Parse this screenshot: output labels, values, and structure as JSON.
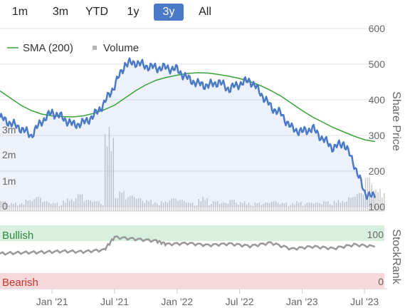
{
  "range_selector": {
    "buttons": [
      "1m",
      "3m",
      "YTD",
      "1y",
      "3y",
      "All"
    ],
    "active": "3y"
  },
  "chart_data": {
    "type": "line",
    "legend": {
      "position": "top-left",
      "items": [
        "SMA (200)",
        "Volume"
      ]
    },
    "price_axis": {
      "label": "Share Price",
      "ticks": [
        100,
        200,
        300,
        400,
        500,
        600
      ],
      "range": [
        100,
        600
      ],
      "side": "right"
    },
    "volume_axis": {
      "ticks": [
        "0",
        "1m",
        "2m",
        "3m"
      ],
      "range": [
        0,
        3000000
      ],
      "side": "left"
    },
    "x_axis": {
      "ticks": [
        "Jan '21",
        "Jul '21",
        "Jan '22",
        "Jul '22",
        "Jan '23",
        "Jul '23"
      ],
      "range": [
        "2020-08",
        "2023-08"
      ]
    },
    "series": [
      {
        "name": "Share Price",
        "color": "#4a7ac7",
        "points": [
          [
            "2020-08",
            350
          ],
          [
            "2020-09",
            335
          ],
          [
            "2020-10",
            320
          ],
          [
            "2020-11",
            300
          ],
          [
            "2020-12",
            340
          ],
          [
            "2021-01",
            365
          ],
          [
            "2021-02",
            350
          ],
          [
            "2021-03",
            330
          ],
          [
            "2021-04",
            335
          ],
          [
            "2021-05",
            355
          ],
          [
            "2021-06",
            390
          ],
          [
            "2021-07",
            440
          ],
          [
            "2021-08",
            500
          ],
          [
            "2021-09",
            505
          ],
          [
            "2021-10",
            495
          ],
          [
            "2021-11",
            490
          ],
          [
            "2021-12",
            490
          ],
          [
            "2022-01",
            485
          ],
          [
            "2022-02",
            460
          ],
          [
            "2022-03",
            445
          ],
          [
            "2022-04",
            440
          ],
          [
            "2022-05",
            450
          ],
          [
            "2022-06",
            430
          ],
          [
            "2022-07",
            445
          ],
          [
            "2022-08",
            455
          ],
          [
            "2022-09",
            420
          ],
          [
            "2022-10",
            380
          ],
          [
            "2022-11",
            360
          ],
          [
            "2022-12",
            320
          ],
          [
            "2023-01",
            310
          ],
          [
            "2023-02",
            320
          ],
          [
            "2023-03",
            290
          ],
          [
            "2023-04",
            265
          ],
          [
            "2023-05",
            280
          ],
          [
            "2023-06",
            220
          ],
          [
            "2023-07",
            140
          ],
          [
            "2023-08",
            125
          ]
        ]
      },
      {
        "name": "SMA (200)",
        "color": "#3aa23a",
        "points": [
          [
            "2020-08",
            425
          ],
          [
            "2020-09",
            405
          ],
          [
            "2020-10",
            385
          ],
          [
            "2020-11",
            370
          ],
          [
            "2020-12",
            360
          ],
          [
            "2021-01",
            355
          ],
          [
            "2021-02",
            353
          ],
          [
            "2021-03",
            352
          ],
          [
            "2021-04",
            355
          ],
          [
            "2021-05",
            362
          ],
          [
            "2021-06",
            372
          ],
          [
            "2021-07",
            385
          ],
          [
            "2021-08",
            405
          ],
          [
            "2021-09",
            425
          ],
          [
            "2021-10",
            442
          ],
          [
            "2021-11",
            455
          ],
          [
            "2021-12",
            463
          ],
          [
            "2022-01",
            469
          ],
          [
            "2022-02",
            474
          ],
          [
            "2022-03",
            476
          ],
          [
            "2022-04",
            475
          ],
          [
            "2022-05",
            471
          ],
          [
            "2022-06",
            466
          ],
          [
            "2022-07",
            460
          ],
          [
            "2022-08",
            451
          ],
          [
            "2022-09",
            440
          ],
          [
            "2022-10",
            426
          ],
          [
            "2022-11",
            410
          ],
          [
            "2022-12",
            390
          ],
          [
            "2023-01",
            370
          ],
          [
            "2023-02",
            352
          ],
          [
            "2023-03",
            337
          ],
          [
            "2023-04",
            322
          ],
          [
            "2023-05",
            310
          ],
          [
            "2023-06",
            298
          ],
          [
            "2023-07",
            288
          ],
          [
            "2023-08",
            283
          ]
        ]
      },
      {
        "name": "Volume",
        "color": "#c8c8c8",
        "values": [
          [
            "2020-08",
            350000
          ],
          [
            "2020-09",
            300000
          ],
          [
            "2020-10",
            400000
          ],
          [
            "2020-11",
            500000
          ],
          [
            "2020-12",
            350000
          ],
          [
            "2021-01",
            300000
          ],
          [
            "2021-02",
            450000
          ],
          [
            "2021-03",
            600000
          ],
          [
            "2021-04",
            400000
          ],
          [
            "2021-05",
            350000
          ],
          [
            "2021-06",
            3000000
          ],
          [
            "2021-07",
            700000
          ],
          [
            "2021-08",
            550000
          ],
          [
            "2021-09",
            450000
          ],
          [
            "2021-10",
            400000
          ],
          [
            "2021-11",
            350000
          ],
          [
            "2021-12",
            450000
          ],
          [
            "2022-01",
            400000
          ],
          [
            "2022-02",
            300000
          ],
          [
            "2022-03",
            500000
          ],
          [
            "2022-04",
            350000
          ],
          [
            "2022-05",
            300000
          ],
          [
            "2022-06",
            400000
          ],
          [
            "2022-07",
            350000
          ],
          [
            "2022-08",
            300000
          ],
          [
            "2022-09",
            300000
          ],
          [
            "2022-10",
            350000
          ],
          [
            "2022-11",
            300000
          ],
          [
            "2022-12",
            350000
          ],
          [
            "2023-01",
            300000
          ],
          [
            "2023-02",
            300000
          ],
          [
            "2023-03",
            350000
          ],
          [
            "2023-04",
            400000
          ],
          [
            "2023-05",
            500000
          ],
          [
            "2023-06",
            650000
          ],
          [
            "2023-07",
            1200000
          ],
          [
            "2023-08",
            800000
          ]
        ]
      }
    ]
  },
  "stockrank": {
    "label": "StockRank",
    "bullish_label": "Bullish",
    "bearish_label": "Bearish",
    "top_value": "100",
    "bottom_value": "0",
    "range": [
      0,
      100
    ],
    "series": [
      [
        "2020-08",
        55
      ],
      [
        "2020-10",
        57
      ],
      [
        "2020-12",
        58
      ],
      [
        "2021-02",
        60
      ],
      [
        "2021-04",
        59
      ],
      [
        "2021-06",
        63
      ],
      [
        "2021-07",
        90
      ],
      [
        "2021-09",
        86
      ],
      [
        "2021-11",
        82
      ],
      [
        "2021-12",
        75
      ],
      [
        "2022-02",
        77
      ],
      [
        "2022-04",
        73
      ],
      [
        "2022-06",
        76
      ],
      [
        "2022-08",
        71
      ],
      [
        "2022-10",
        78
      ],
      [
        "2022-12",
        65
      ],
      [
        "2023-02",
        70
      ],
      [
        "2023-04",
        66
      ],
      [
        "2023-06",
        74
      ],
      [
        "2023-08",
        70
      ]
    ],
    "colors": {
      "bullish_bg": "#d9f0df",
      "bullish_text": "#2b8a3e",
      "bearish_bg": "#f6d8da",
      "bearish_text": "#c0392b",
      "line": "#999999"
    }
  }
}
